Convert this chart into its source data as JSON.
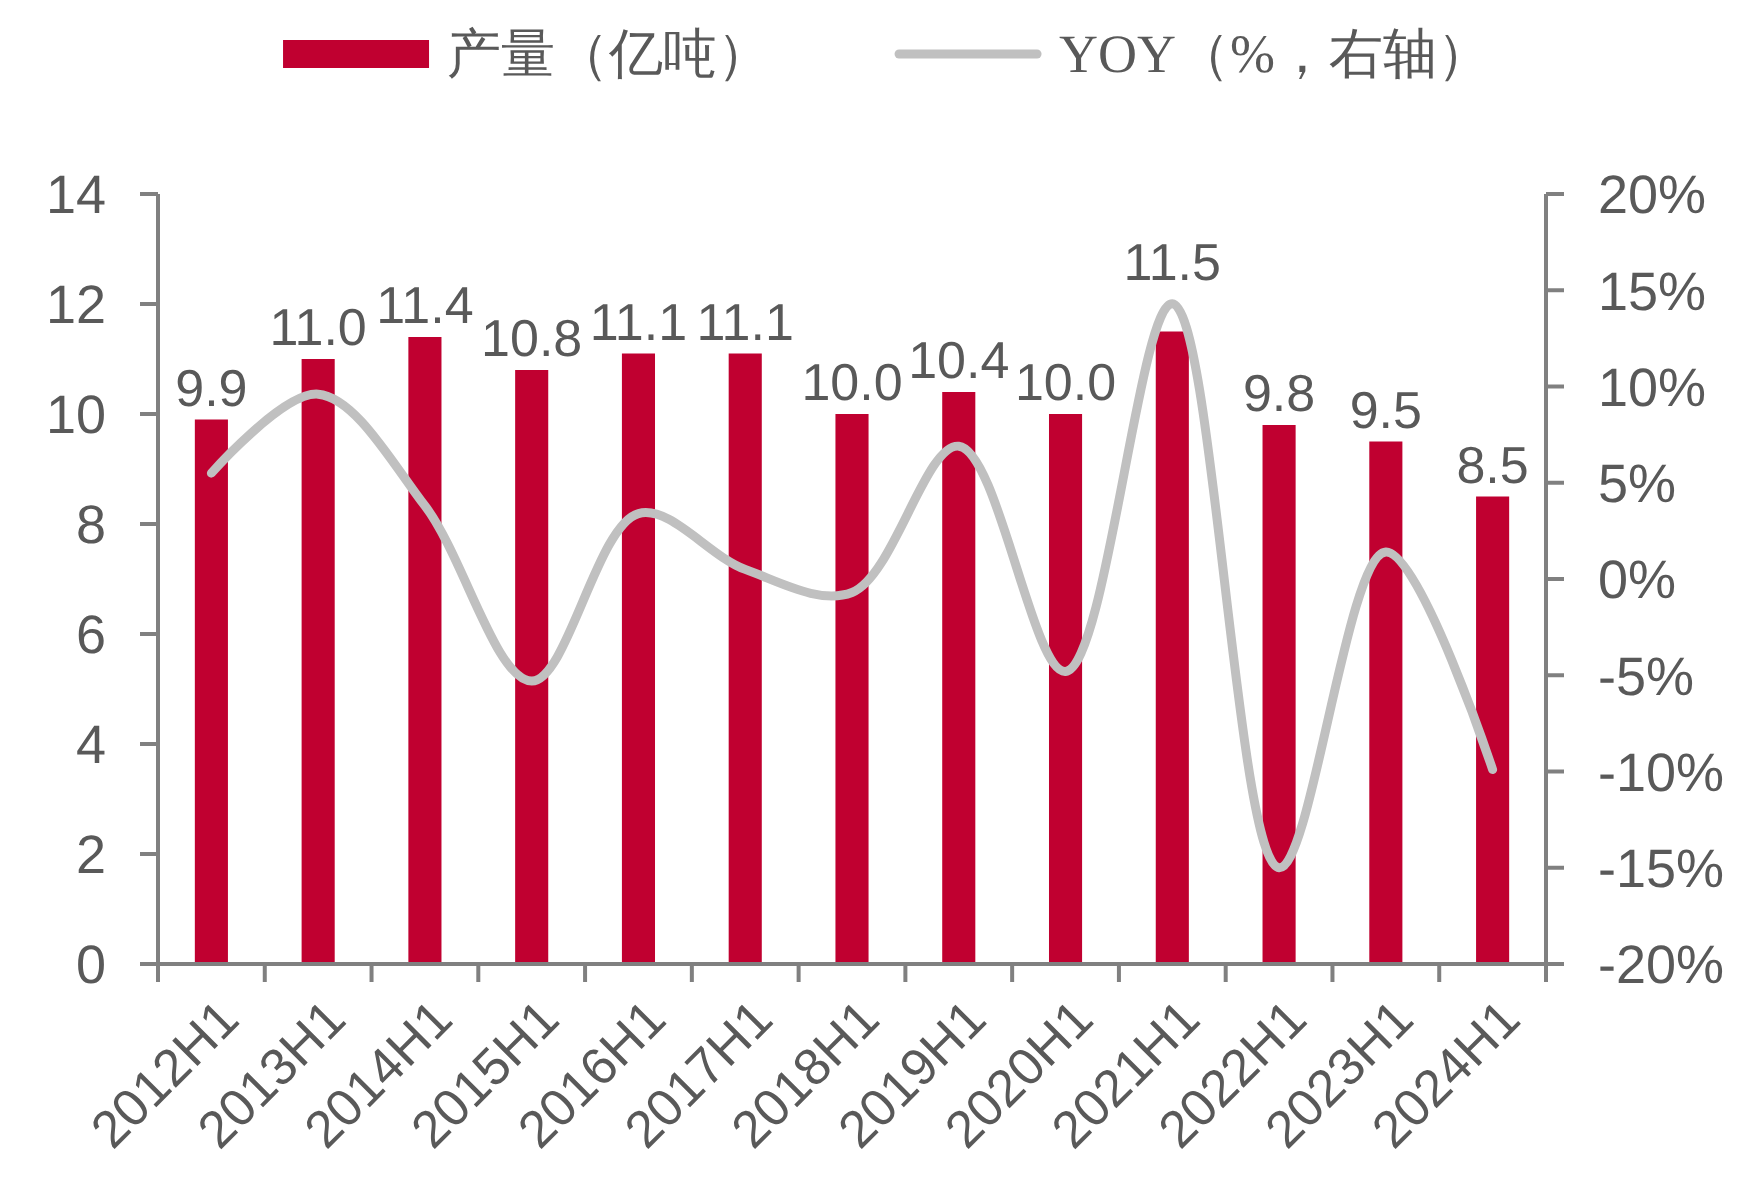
{
  "chart_data": {
    "type": "bar",
    "categories": [
      "2012H1",
      "2013H1",
      "2014H1",
      "2015H1",
      "2016H1",
      "2017H1",
      "2018H1",
      "2019H1",
      "2020H1",
      "2021H1",
      "2022H1",
      "2023H1",
      "2024H1"
    ],
    "series": [
      {
        "name": "产量（亿吨）",
        "color": "#c00030",
        "values": [
          9.9,
          11.0,
          11.4,
          10.8,
          11.1,
          11.1,
          10.0,
          10.4,
          10.0,
          11.5,
          9.8,
          9.5,
          8.5
        ],
        "value_labels": [
          "9.9",
          "11.0",
          "11.4",
          "10.8",
          "11.1",
          "11.1",
          "10.0",
          "10.4",
          "10.0",
          "11.5",
          "9.8",
          "9.5",
          "8.5"
        ]
      },
      {
        "name": "YOY（%，右轴）",
        "type": "line",
        "axis": "y2",
        "color": "#c0c0c0",
        "values": [
          5.5,
          9.6,
          3.8,
          -5.3,
          3.4,
          0.5,
          -0.7,
          6.9,
          -4.8,
          14.3,
          -15.0,
          1.4,
          -9.9
        ]
      }
    ],
    "ylim": [
      0,
      14
    ],
    "yticks": [
      0,
      2,
      4,
      6,
      8,
      10,
      12,
      14
    ],
    "y2lim": [
      -20,
      20
    ],
    "y2ticks": [
      {
        "value": -20,
        "label": "-20%"
      },
      {
        "value": -15,
        "label": "-15%"
      },
      {
        "value": -10,
        "label": "-10%"
      },
      {
        "value": -5,
        "label": "-5%"
      },
      {
        "value": 0,
        "label": "0%"
      },
      {
        "value": 5,
        "label": "5%"
      },
      {
        "value": 10,
        "label": "10%"
      },
      {
        "value": 15,
        "label": "15%"
      },
      {
        "value": 20,
        "label": "20%"
      }
    ],
    "legend": "top"
  }
}
